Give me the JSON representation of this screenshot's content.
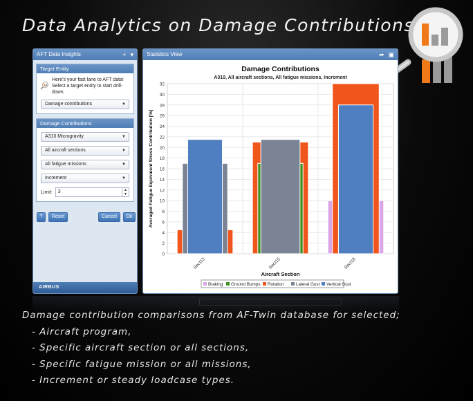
{
  "page_title": "Data Analytics on Damage Contributions",
  "left_panel": {
    "title": "AFT Data Insights",
    "target_section_title": "Target Entity",
    "intro_text": "Here's your fast lane to AFT data! Select a target entity to start drill-down.",
    "target_select": "Damage contributions",
    "dc_section_title": "Damage Contributions",
    "selects": [
      "A310 Microgravity",
      "All aircraft sections",
      "All fatigue missions",
      "Increment"
    ],
    "limit_label": "Limit:",
    "limit_value": "3",
    "help_label": "?",
    "reset_label": "Reset",
    "cancel_label": "Cancel",
    "ok_label": "Ok",
    "brand": "AIRBUS"
  },
  "right_panel": {
    "title": "Statistics View"
  },
  "colors": {
    "braking": "#d9a6e6",
    "ground_bumps": "#3f8f1f",
    "rotation": "#f0561c",
    "lateral_gust": "#7a8494",
    "vertical_gust": "#4f7fc0",
    "header_blue": "#5a86bd"
  },
  "chart_data": {
    "type": "bar",
    "title": "Damage Contributions",
    "subtitle": "A310, All aircraft sections, All fatigue missions, Increment",
    "xlabel": "Aircraft Section",
    "ylabel": "Averaged Fatigue Equivalent Stress Contribution [%]",
    "categories": [
      "Sect13",
      "Sect15",
      "Sect18"
    ],
    "ylim": [
      0,
      32
    ],
    "yticks": [
      0,
      2,
      4,
      6,
      8,
      10,
      12,
      14,
      16,
      18,
      20,
      22,
      24,
      26,
      28,
      30,
      32
    ],
    "grid": true,
    "legend_position": "bottom",
    "series": [
      {
        "name": "Braking",
        "color": "#d9a6e6",
        "values": [
          0,
          0,
          10
        ]
      },
      {
        "name": "Ground Bumps",
        "color": "#3f8f1f",
        "values": [
          0,
          17,
          0
        ]
      },
      {
        "name": "Rotation",
        "color": "#f0561c",
        "values": [
          4.5,
          21,
          32
        ]
      },
      {
        "name": "Lateral Gust",
        "color": "#7a8494",
        "values": [
          17,
          21.5,
          0
        ]
      },
      {
        "name": "Vertical Gust",
        "color": "#4f7fc0",
        "values": [
          21.5,
          0,
          28
        ]
      }
    ]
  },
  "description": {
    "intro": "Damage contribution comparisons from AF-Twin database for selected;",
    "items": [
      "- Aircraft program,",
      "- Specific aircraft section or all sections,",
      "- Specific fatigue mission or all missions,",
      "- Increment or steady loadcase types."
    ]
  }
}
